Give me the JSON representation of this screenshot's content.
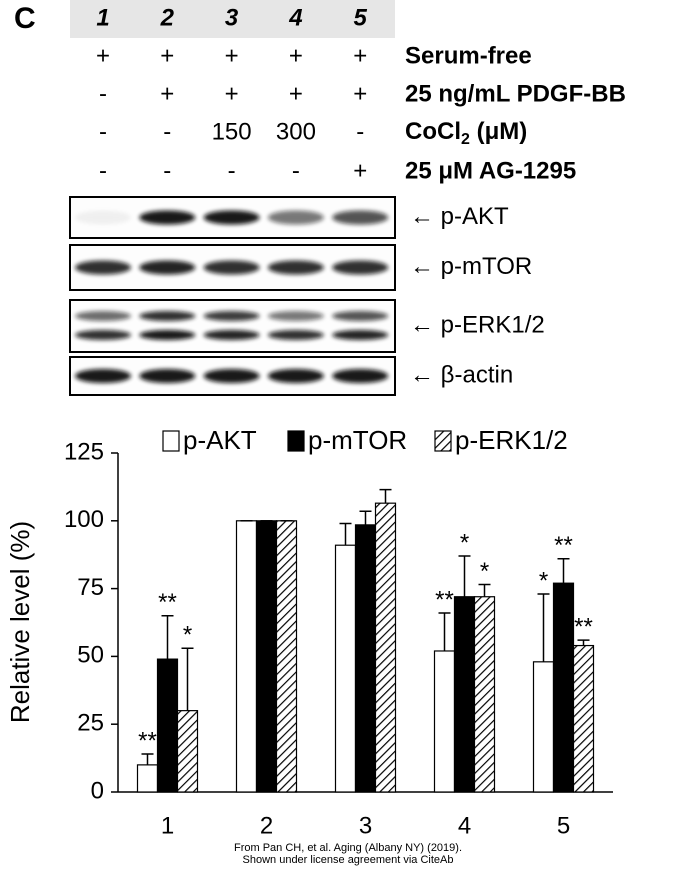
{
  "panel_label": "C",
  "blot": {
    "lanes": [
      "1",
      "2",
      "3",
      "4",
      "5"
    ],
    "treatments": [
      {
        "label": "Serum-free",
        "cells": [
          "+",
          "+",
          "+",
          "+",
          "+"
        ]
      },
      {
        "label": "25 ng/mL PDGF-BB",
        "cells": [
          "-",
          "+",
          "+",
          "+",
          "+"
        ]
      },
      {
        "label": {
          "text": "CoCl",
          "subscript": "2",
          "suffix": " (μM)"
        },
        "cells": [
          "-",
          "-",
          "150",
          "300",
          "-"
        ]
      },
      {
        "label": "25 μM AG-1295",
        "cells": [
          "-",
          "-",
          "-",
          "-",
          "+"
        ]
      }
    ],
    "labels": [
      "← p-AKT",
      "← p-mTOR",
      "← p-ERK1/2",
      "← β-actin"
    ]
  },
  "chart_data": {
    "type": "bar",
    "y_label": "Relative level (%)",
    "categories": [
      "1",
      "2",
      "3",
      "4",
      "5"
    ],
    "series": [
      {
        "name": "p-AKT",
        "color": "#ffffff",
        "values": [
          10,
          100,
          91,
          52,
          48
        ],
        "errors": [
          4,
          0,
          8,
          14,
          25
        ],
        "significance": [
          "**",
          null,
          null,
          "**",
          "*"
        ]
      },
      {
        "name": "p-mTOR",
        "color": "#000000",
        "values": [
          49,
          100,
          98.5,
          72,
          77
        ],
        "errors": [
          16,
          0,
          5,
          15,
          9
        ],
        "significance": [
          "**",
          null,
          null,
          "*",
          "**"
        ]
      },
      {
        "name": "p-ERK1/2",
        "color": "#000000",
        "pattern": "hatch",
        "values": [
          30,
          100,
          106.5,
          72,
          54
        ],
        "errors": [
          23,
          0,
          5,
          4.5,
          2
        ],
        "significance": [
          "*",
          null,
          null,
          "*",
          "**"
        ]
      }
    ],
    "ylim": [
      0,
      125
    ],
    "yticks": [
      0,
      25,
      50,
      75,
      100,
      125
    ],
    "legend": "top"
  },
  "credit": [
    "From Pan CH, et al. Aging (Albany NY) (2019).",
    "Shown under license agreement via CiteAb"
  ]
}
